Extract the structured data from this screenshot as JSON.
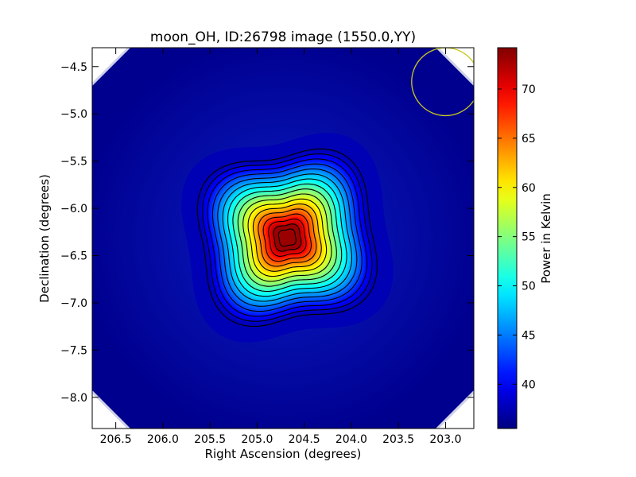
{
  "chart_data": {
    "type": "heatmap",
    "title": "moon_OH, ID:26798 image (1550.0,YY)",
    "xlabel": "Right Ascension (degrees)",
    "ylabel": "Declination (degrees)",
    "xlim": [
      206.75,
      202.7
    ],
    "ylim": [
      -8.33,
      -4.3
    ],
    "x_ticks": [
      206.5,
      206.0,
      205.5,
      205.0,
      204.5,
      204.0,
      203.5,
      203.0
    ],
    "x_tick_labels": [
      "206.5",
      "206.0",
      "205.5",
      "205.0",
      "204.5",
      "204.0",
      "203.5",
      "203.0"
    ],
    "y_ticks": [
      -4.5,
      -5.0,
      -5.5,
      -6.0,
      -6.5,
      -7.0,
      -7.5,
      -8.0
    ],
    "y_tick_labels": [
      "−4.5",
      "−5.0",
      "−5.5",
      "−6.0",
      "−6.5",
      "−7.0",
      "−7.5",
      "−8.0"
    ],
    "colorbar": {
      "label": "Power in Kelvin",
      "range": [
        35.5,
        74.2
      ],
      "ticks": [
        40,
        45,
        50,
        55,
        60,
        65,
        70
      ],
      "tick_labels": [
        "40",
        "45",
        "50",
        "55",
        "60",
        "65",
        "70"
      ],
      "colormap": "jet"
    },
    "source": {
      "ra": 204.68,
      "dec": -6.31,
      "peak_kelvin": 74.2,
      "background_kelvin": 35.5
    },
    "contour_count": 17,
    "beam_circle": {
      "ra": 203.0,
      "dec": -4.66,
      "radius_deg": 0.3,
      "color": "#c8c820"
    },
    "grid": false
  }
}
